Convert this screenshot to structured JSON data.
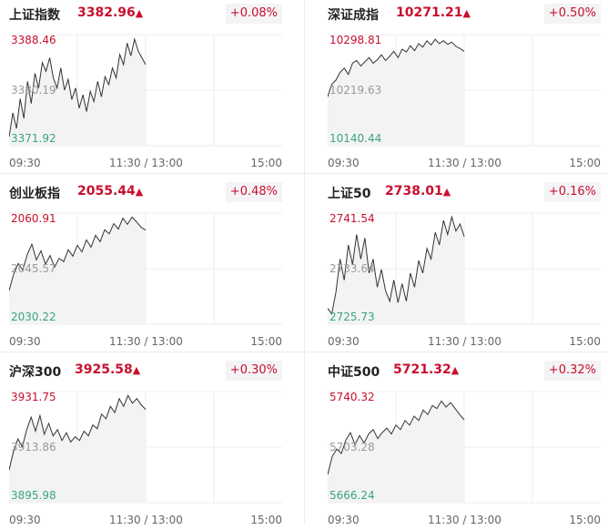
{
  "colors": {
    "up": "#c8102e",
    "low": "#3aa385",
    "axis_mid": "#999999",
    "line": "#333333"
  },
  "time_labels": {
    "open": "09:30",
    "midday": "11:30 / 13:00",
    "close": "15:00"
  },
  "panels": [
    {
      "name": "上证指数",
      "value": "3382.96",
      "arrow": "▲",
      "change": "+0.08%",
      "high_label": "3388.46",
      "mid_label": "3380.19",
      "low_label": "3371.92",
      "chart_data": {
        "type": "line",
        "ylim": [
          3371.92,
          3388.46
        ],
        "values": [
          3373.2,
          3376.8,
          3374.5,
          3378.9,
          3376.0,
          3381.5,
          3378.2,
          3382.7,
          3380.5,
          3384.3,
          3383.0,
          3385.0,
          3382.0,
          3380.5,
          3383.5,
          3380.2,
          3381.8,
          3378.8,
          3380.5,
          3377.5,
          3379.5,
          3377.0,
          3380.0,
          3378.5,
          3381.5,
          3379.2,
          3382.2,
          3381.0,
          3383.5,
          3382.0,
          3385.5,
          3384.0,
          3387.2,
          3385.3,
          3387.8,
          3386.0,
          3385.0,
          3384.0
        ]
      }
    },
    {
      "name": "深证成指",
      "value": "10271.21",
      "arrow": "▲",
      "change": "+0.50%",
      "high_label": "10298.81",
      "mid_label": "10219.63",
      "low_label": "10140.44",
      "chart_data": {
        "type": "line",
        "ylim": [
          10140.44,
          10298.81
        ],
        "values": [
          10210,
          10228,
          10234,
          10245,
          10251,
          10242,
          10258,
          10262,
          10254,
          10260,
          10266,
          10258,
          10263,
          10270,
          10262,
          10268,
          10275,
          10266,
          10278,
          10274,
          10283,
          10276,
          10286,
          10281,
          10290,
          10284,
          10292,
          10286,
          10290,
          10285,
          10288,
          10282,
          10279,
          10275
        ]
      }
    },
    {
      "name": "创业板指",
      "value": "2055.44",
      "arrow": "▲",
      "change": "+0.48%",
      "high_label": "2060.91",
      "mid_label": "2045.57",
      "low_label": "2030.22",
      "chart_data": {
        "type": "line",
        "ylim": [
          2030.22,
          2060.91
        ],
        "values": [
          2039.5,
          2044.0,
          2047.0,
          2045.2,
          2049.5,
          2052.3,
          2048.0,
          2050.5,
          2046.8,
          2049.2,
          2046.0,
          2048.4,
          2047.5,
          2050.8,
          2049.0,
          2052.0,
          2050.2,
          2053.5,
          2051.5,
          2054.8,
          2053.0,
          2056.3,
          2055.2,
          2058.0,
          2056.5,
          2059.5,
          2057.8,
          2059.8,
          2058.5,
          2057.0,
          2056.2
        ]
      }
    },
    {
      "name": "上证50",
      "value": "2738.01",
      "arrow": "▲",
      "change": "+0.16%",
      "high_label": "2741.54",
      "mid_label": "2733.64",
      "low_label": "2725.73",
      "chart_data": {
        "type": "line",
        "ylim": [
          2725.73,
          2741.54
        ],
        "values": [
          2728.0,
          2727.2,
          2730.3,
          2735.0,
          2732.0,
          2737.0,
          2734.2,
          2738.5,
          2735.0,
          2738.0,
          2733.0,
          2735.0,
          2731.0,
          2733.5,
          2730.5,
          2729.0,
          2732.0,
          2728.8,
          2731.5,
          2729.0,
          2733.0,
          2731.0,
          2734.8,
          2733.0,
          2736.5,
          2735.0,
          2738.8,
          2737.0,
          2740.5,
          2738.5,
          2741.0,
          2739.0,
          2740.0,
          2738.2
        ]
      }
    },
    {
      "name": "沪深300",
      "value": "3925.58",
      "arrow": "▲",
      "change": "+0.30%",
      "high_label": "3931.75",
      "mid_label": "3913.86",
      "low_label": "3895.98",
      "chart_data": {
        "type": "line",
        "ylim": [
          3895.98,
          3931.75
        ],
        "values": [
          3906.5,
          3912.5,
          3916.5,
          3914.0,
          3919.5,
          3923.5,
          3919.0,
          3924.0,
          3918.0,
          3921.5,
          3917.5,
          3919.5,
          3916.0,
          3918.5,
          3915.5,
          3917.2,
          3916.0,
          3919.0,
          3917.5,
          3921.0,
          3919.8,
          3924.5,
          3923.0,
          3927.0,
          3925.0,
          3929.5,
          3927.0,
          3930.5,
          3928.0,
          3929.5,
          3927.5,
          3926.0
        ]
      }
    },
    {
      "name": "中证500",
      "value": "5721.32",
      "arrow": "▲",
      "change": "+0.32%",
      "high_label": "5740.32",
      "mid_label": "5703.28",
      "low_label": "5666.24",
      "chart_data": {
        "type": "line",
        "ylim": [
          5666.24,
          5740.32
        ],
        "values": [
          5685.0,
          5697.0,
          5702.0,
          5699.0,
          5708.0,
          5713.0,
          5705.0,
          5711.0,
          5706.0,
          5712.0,
          5715.0,
          5709.0,
          5713.0,
          5716.0,
          5712.0,
          5718.0,
          5715.0,
          5721.0,
          5718.0,
          5724.0,
          5721.0,
          5728.0,
          5725.0,
          5731.0,
          5729.0,
          5734.0,
          5730.0,
          5733.0,
          5729.0,
          5725.0,
          5721.5
        ]
      }
    }
  ]
}
